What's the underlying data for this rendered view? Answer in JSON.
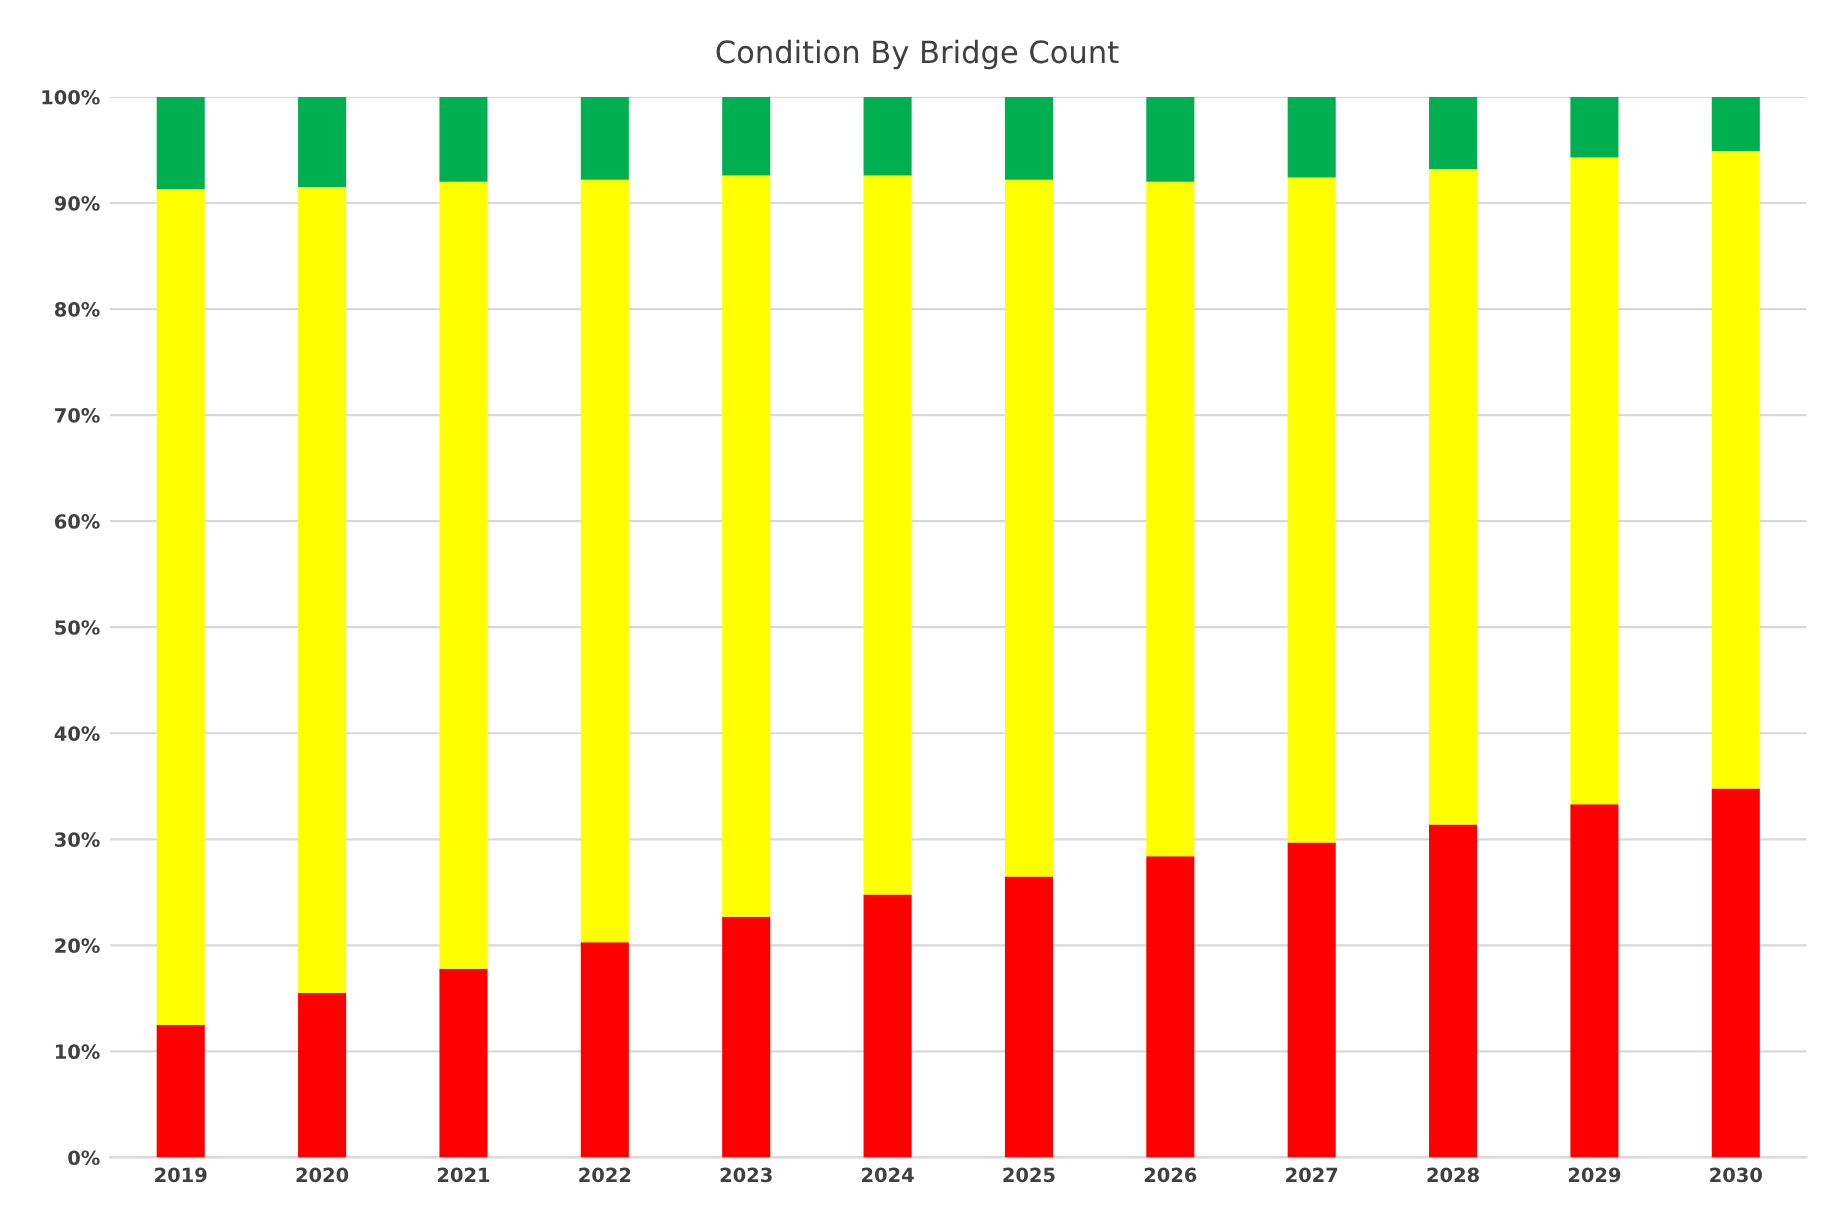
{
  "chart_data": {
    "type": "bar",
    "title": "Condition By Bridge Count",
    "stacked": true,
    "categories": [
      "2019",
      "2020",
      "2021",
      "2022",
      "2023",
      "2024",
      "2025",
      "2026",
      "2027",
      "2028",
      "2029",
      "2030"
    ],
    "series": [
      {
        "color": "#ff0000",
        "values": [
          12.5,
          15.5,
          17.8,
          20.3,
          22.7,
          24.8,
          26.5,
          28.4,
          29.7,
          31.4,
          33.3,
          34.8
        ]
      },
      {
        "color": "#ffff00",
        "values": [
          78.8,
          76.0,
          74.2,
          71.9,
          69.9,
          67.8,
          65.7,
          63.6,
          62.7,
          61.8,
          61.0,
          60.1
        ]
      },
      {
        "color": "#00b050",
        "values": [
          8.7,
          8.5,
          8.0,
          7.8,
          7.4,
          7.4,
          7.8,
          8.0,
          7.6,
          6.8,
          5.7,
          5.1
        ]
      }
    ],
    "ylim": [
      0,
      100
    ],
    "yticks": [
      {
        "value": 0,
        "label": "0%"
      },
      {
        "value": 10,
        "label": "10%"
      },
      {
        "value": 20,
        "label": "20%"
      },
      {
        "value": 30,
        "label": "30%"
      },
      {
        "value": 40,
        "label": "40%"
      },
      {
        "value": 50,
        "label": "50%"
      },
      {
        "value": 60,
        "label": "60%"
      },
      {
        "value": 70,
        "label": "70%"
      },
      {
        "value": 80,
        "label": "80%"
      },
      {
        "value": 90,
        "label": "90%"
      },
      {
        "value": 100,
        "label": "100%"
      }
    ],
    "grid": "y"
  }
}
